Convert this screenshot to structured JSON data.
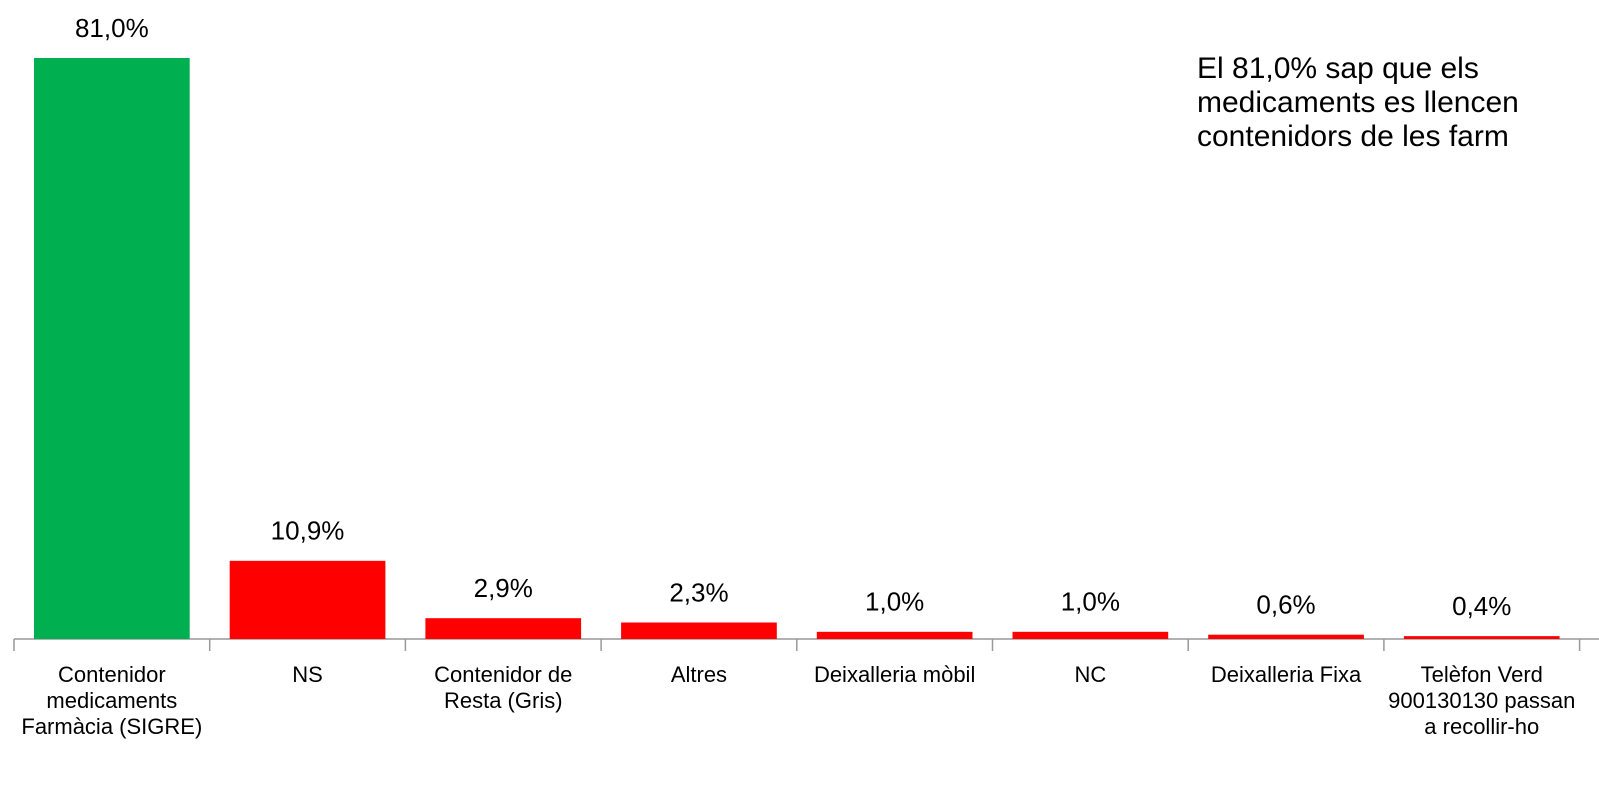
{
  "chart_data": {
    "type": "bar",
    "categories": [
      "Contenidor medicaments Farmàcia (SIGRE)",
      "NS",
      "Contenidor de Resta (Gris)",
      "Altres",
      "Deixalleria mòbil",
      "NC",
      "Deixalleria Fixa",
      "Telèfon Verd 900130130 passan a recollir-ho"
    ],
    "values": [
      81.0,
      10.9,
      2.9,
      2.3,
      1.0,
      1.0,
      0.6,
      0.4
    ],
    "value_labels": [
      "81,0%",
      "10,9%",
      "2,9%",
      "2,3%",
      "1,0%",
      "1,0%",
      "0,6%",
      "0,4%"
    ],
    "colors": [
      "#00b050",
      "#ff0000",
      "#ff0000",
      "#ff0000",
      "#ff0000",
      "#ff0000",
      "#ff0000",
      "#ff0000"
    ],
    "annotation": [
      "El 81,0% sap que els",
      "medicaments es llencen",
      "contenidors de les farm"
    ]
  }
}
